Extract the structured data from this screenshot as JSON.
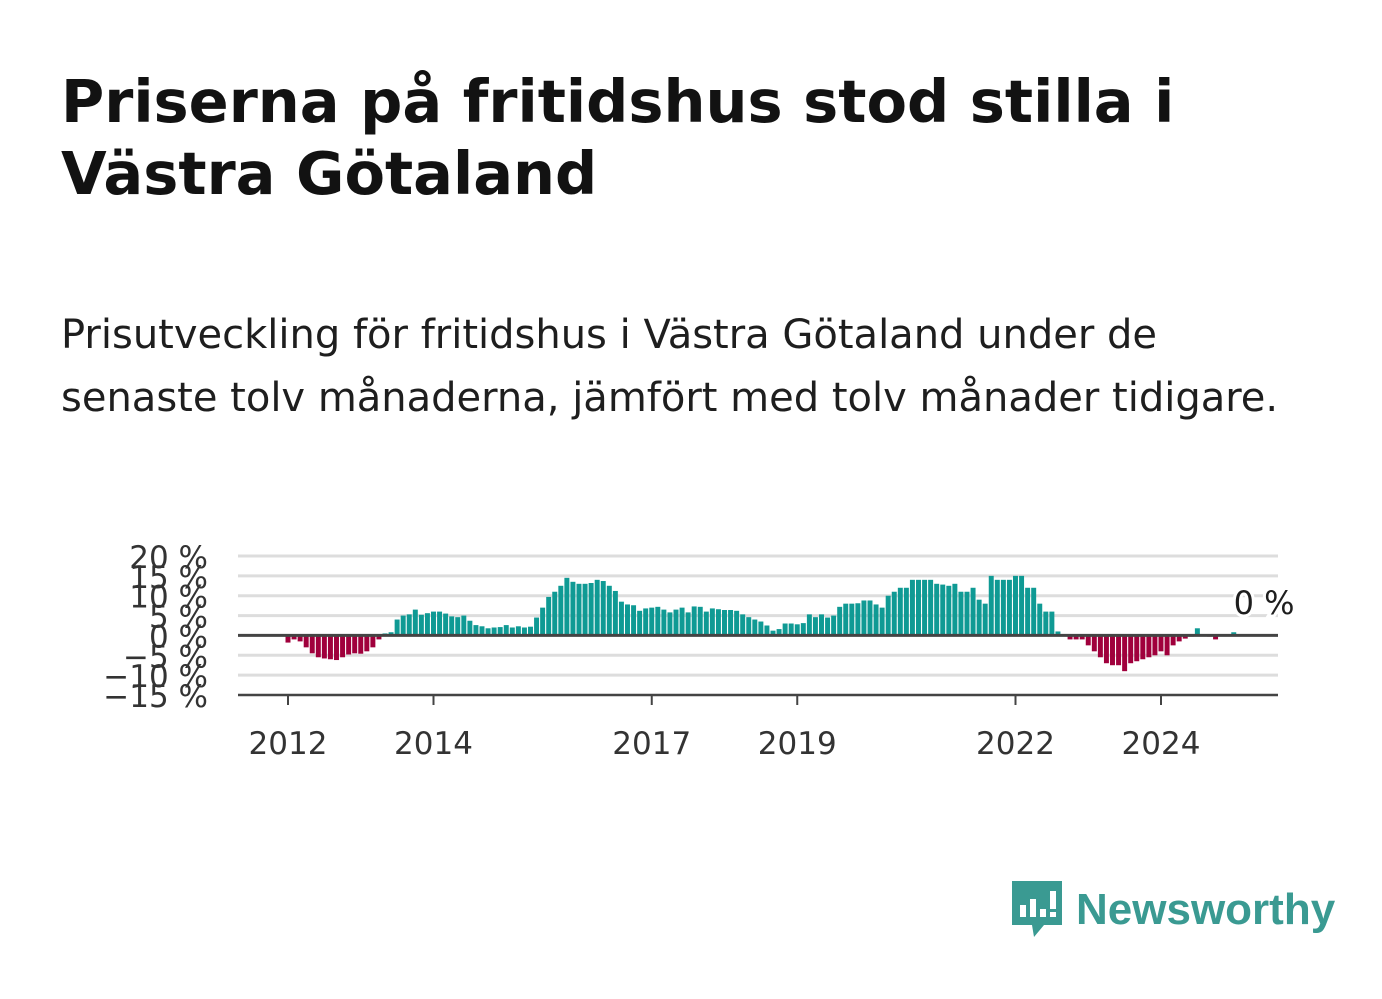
{
  "header": {
    "title": "Priserna på fritidshus stod stilla i Västra Götaland",
    "subtitle": "Prisutveckling för fritidshus i Västra Götaland under de senaste tolv månaderna, jämfört med tolv månader tidigare."
  },
  "colors": {
    "positive": "#0f9a94",
    "negative": "#a0003c",
    "zero_line": "#444444",
    "grid": "#dddddd",
    "brand": "#3a9a92"
  },
  "chart_data": {
    "type": "bar",
    "ylim": [
      -15,
      20
    ],
    "y_ticks": [
      20,
      15,
      10,
      5,
      0,
      -5,
      -10,
      -15
    ],
    "y_tick_labels": [
      "20 %",
      "15 %",
      "10 %",
      "5 %",
      "0 %",
      "−5 %",
      "−10 %",
      "−15 %"
    ],
    "x_ticks": [
      "2012",
      "2014",
      "2017",
      "2019",
      "2022",
      "2024"
    ],
    "grid": true,
    "annotation": {
      "text": "0 %",
      "date": "2025-06"
    },
    "series": [
      {
        "start": "2012-01",
        "frequency": "monthly",
        "values": [
          -1.8,
          -1.0,
          -1.5,
          -3.0,
          -4.5,
          -5.5,
          -5.8,
          -6.0,
          -6.2,
          -5.5,
          -4.8,
          -4.5,
          -4.6,
          -4.0,
          -3.0,
          -1.0,
          0.5,
          0.8,
          4.0,
          5.0,
          5.3,
          6.5,
          5.2,
          5.6,
          6.0,
          6.0,
          5.5,
          4.8,
          4.6,
          5.0,
          3.7,
          2.6,
          2.3,
          1.8,
          2.0,
          2.1,
          2.6,
          2.0,
          2.3,
          2.0,
          2.2,
          4.5,
          7.0,
          9.7,
          11.0,
          12.5,
          14.5,
          13.5,
          13.0,
          13.0,
          13.2,
          14.0,
          13.7,
          12.5,
          11.2,
          8.5,
          7.8,
          7.6,
          6.2,
          6.8,
          7.0,
          7.2,
          6.5,
          5.8,
          6.5,
          7.0,
          5.8,
          7.3,
          7.2,
          6.0,
          6.8,
          6.6,
          6.4,
          6.4,
          6.2,
          5.3,
          4.6,
          4.0,
          3.5,
          2.5,
          1.2,
          1.6,
          3.0,
          3.0,
          2.8,
          3.1,
          5.3,
          4.6,
          5.3,
          4.5,
          5.0,
          7.2,
          8.0,
          8.0,
          8.1,
          8.8,
          8.8,
          7.8,
          7.0,
          10.0,
          11.0,
          12.0,
          12.0,
          14.0,
          14.0,
          14.0,
          14.0,
          13.0,
          12.8,
          12.5,
          13.0,
          11.0,
          11.0,
          12.0,
          9.0,
          8.0,
          15.0,
          14.0,
          14.0,
          14.0,
          15.0,
          15.0,
          12.0,
          12.0,
          8.0,
          6.0,
          6.0,
          1.0,
          0.0,
          -1.0,
          -1.0,
          -1.0,
          -2.5,
          -4.0,
          -5.5,
          -7.0,
          -7.5,
          -7.5,
          -9.0,
          -7.0,
          -6.5,
          -6.0,
          -5.5,
          -5.0,
          -4.0,
          -5.0,
          -2.5,
          -1.5,
          -0.8,
          -0.3,
          1.8,
          0.2,
          -0.3,
          -1.0,
          0.0,
          0.2,
          0.8,
          0.2,
          0.0
        ]
      }
    ]
  },
  "brand": {
    "name": "Newsworthy",
    "icon": "newsworthy-logo-icon"
  }
}
